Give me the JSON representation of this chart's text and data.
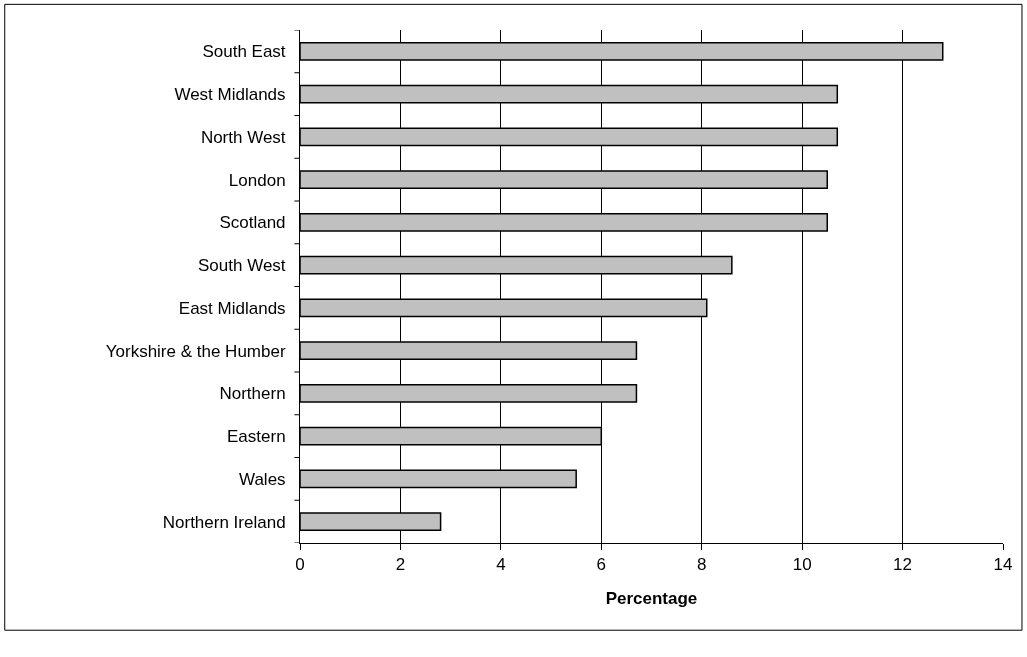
{
  "chart_data": {
    "type": "bar",
    "orientation": "horizontal",
    "xlabel": "Percentage",
    "categories": [
      "South East",
      "West Midlands",
      "North West",
      "London",
      "Scotland",
      "South West",
      "East Midlands",
      "Yorkshire & the Humber",
      "Northern",
      "Eastern",
      "Wales",
      "Northern Ireland"
    ],
    "values": [
      12.8,
      10.7,
      10.7,
      10.5,
      10.5,
      8.6,
      8.1,
      6.7,
      6.7,
      6.0,
      5.5,
      2.8
    ],
    "color": "#c0c0c0",
    "xlim": [
      0,
      14
    ],
    "xticks": [
      0,
      2,
      4,
      6,
      8,
      10,
      12,
      14
    ],
    "grid": "x"
  }
}
